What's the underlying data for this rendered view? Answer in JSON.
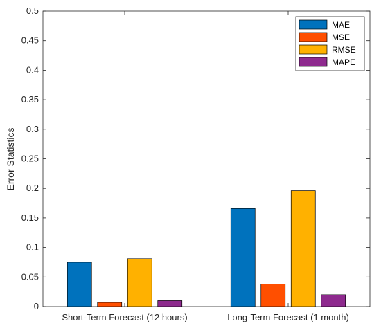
{
  "chart_data": {
    "type": "bar",
    "title": "",
    "xlabel": "",
    "ylabel": "Error Statistics",
    "ylim": [
      0,
      0.5
    ],
    "yticks": [
      0,
      0.05,
      0.1,
      0.15,
      0.2,
      0.25,
      0.3,
      0.35,
      0.4,
      0.45,
      0.5
    ],
    "ytick_labels": [
      "0",
      "0.05",
      "0.1",
      "0.15",
      "0.2",
      "0.25",
      "0.3",
      "0.35",
      "0.4",
      "0.45",
      "0.5"
    ],
    "categories": [
      "Short-Term Forecast (12 hours)",
      "Long-Term Forecast (1 month)"
    ],
    "series": [
      {
        "name": "MAE",
        "values": [
          0.075,
          0.166
        ],
        "color": "#0072BD"
      },
      {
        "name": "MSE",
        "values": [
          0.007,
          0.038
        ],
        "color": "#FF4F00"
      },
      {
        "name": "RMSE",
        "values": [
          0.081,
          0.196
        ],
        "color": "#FFB100"
      },
      {
        "name": "MAPE",
        "values": [
          0.01,
          0.02
        ],
        "color": "#8E2A8E"
      }
    ],
    "legend_position": "top-right",
    "grid": false
  }
}
